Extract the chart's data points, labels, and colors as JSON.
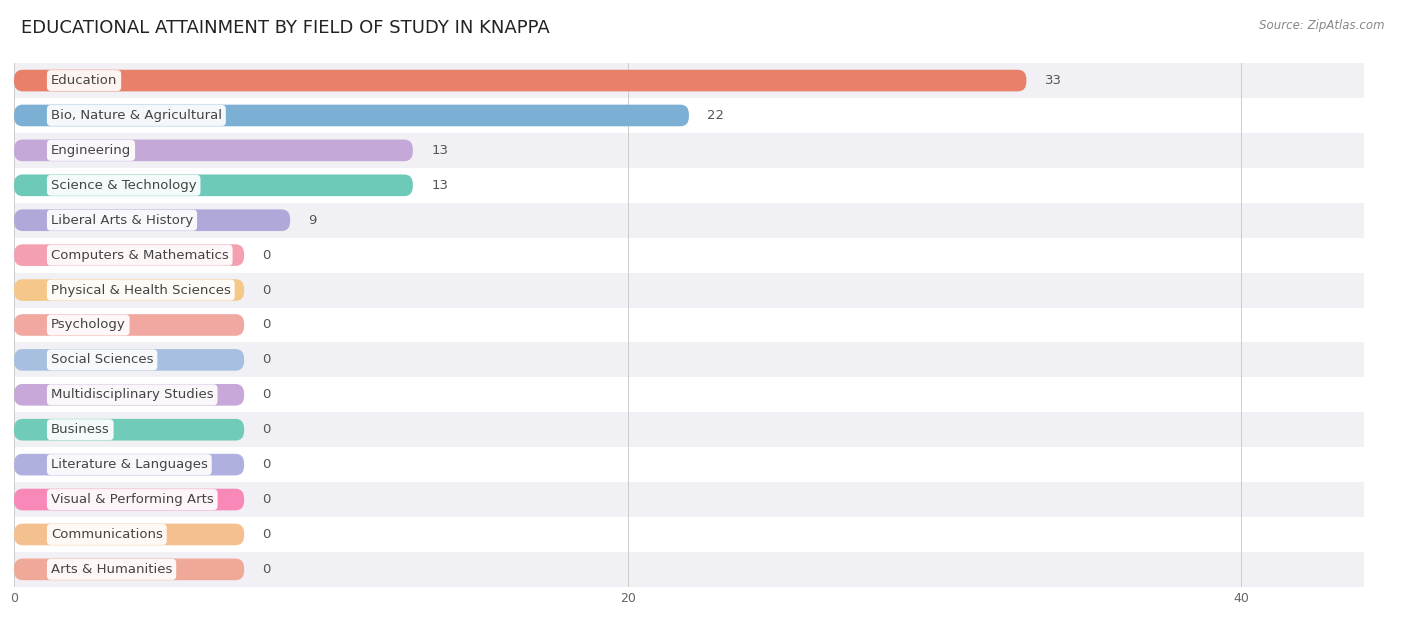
{
  "title": "EDUCATIONAL ATTAINMENT BY FIELD OF STUDY IN KNAPPA",
  "source": "Source: ZipAtlas.com",
  "categories": [
    "Education",
    "Bio, Nature & Agricultural",
    "Engineering",
    "Science & Technology",
    "Liberal Arts & History",
    "Computers & Mathematics",
    "Physical & Health Sciences",
    "Psychology",
    "Social Sciences",
    "Multidisciplinary Studies",
    "Business",
    "Literature & Languages",
    "Visual & Performing Arts",
    "Communications",
    "Arts & Humanities"
  ],
  "values": [
    33,
    22,
    13,
    13,
    9,
    0,
    0,
    0,
    0,
    0,
    0,
    0,
    0,
    0,
    0
  ],
  "bar_colors": [
    "#E8806A",
    "#7BAFD4",
    "#C4A8D8",
    "#6DCAB8",
    "#B0A8D8",
    "#F4A0B0",
    "#F5C88A",
    "#F0A8A0",
    "#A8C0E0",
    "#C8A8D8",
    "#70CCB8",
    "#B0B0E0",
    "#F888B8",
    "#F5C090",
    "#F0A898"
  ],
  "xlim": [
    0,
    44
  ],
  "background_color": "#ffffff",
  "row_bg_even": "#f0f0f5",
  "row_bg_odd": "#ffffff",
  "title_fontsize": 13,
  "label_fontsize": 9.5,
  "value_fontsize": 9.5,
  "zero_bar_width": 7.5
}
